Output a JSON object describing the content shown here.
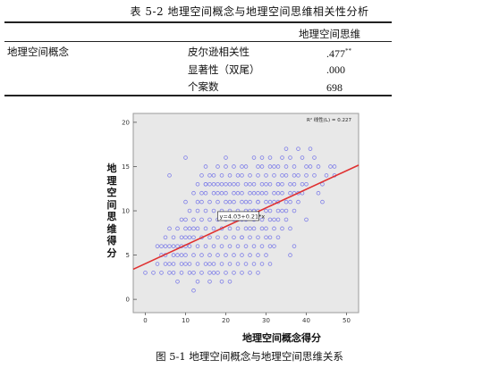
{
  "table": {
    "caption": "表 5-2  地理空间概念与地理空间思维相关性分析",
    "column_header": "地理空间思维",
    "row_header": "地理空间概念",
    "rows": [
      {
        "stat": "皮尔逊相关性",
        "value": ".477",
        "sig_mark": "**"
      },
      {
        "stat": "显著性（双尾）",
        "value": ".000",
        "sig_mark": ""
      },
      {
        "stat": "个案数",
        "value": "698",
        "sig_mark": ""
      }
    ]
  },
  "figure": {
    "caption": "图 5-1  地理空间概念与地理空间思维关系",
    "r2_label": "R² 线性(L) = 0.227",
    "equation_label": "y=4.03+0.21*x"
  },
  "chart_data": {
    "type": "scatter",
    "xlabel": "地理空间概念得分",
    "ylabel": "地理空间思维得分",
    "xlim": [
      -3,
      53
    ],
    "ylim": [
      -1.5,
      21
    ],
    "xticks": [
      0,
      10,
      20,
      30,
      40,
      50
    ],
    "yticks": [
      0,
      5,
      10,
      15,
      20
    ],
    "grid": false,
    "colors": {
      "points": "#8080e8",
      "fit_line": "#e03030",
      "background": "#e8e8e8"
    },
    "fit_line": {
      "intercept": 4.03,
      "slope": 0.21,
      "r2": 0.227
    },
    "points_x": [
      0,
      2,
      3,
      3,
      4,
      4,
      4,
      5,
      5,
      5,
      5,
      6,
      6,
      6,
      6,
      7,
      7,
      7,
      7,
      7,
      8,
      8,
      8,
      8,
      9,
      9,
      9,
      9,
      9,
      9,
      10,
      10,
      10,
      10,
      10,
      10,
      10,
      11,
      11,
      11,
      11,
      11,
      11,
      12,
      12,
      12,
      12,
      12,
      12,
      13,
      13,
      13,
      13,
      13,
      13,
      13,
      14,
      14,
      14,
      14,
      14,
      14,
      14,
      15,
      15,
      15,
      15,
      15,
      15,
      15,
      16,
      16,
      16,
      16,
      16,
      16,
      16,
      16,
      17,
      17,
      17,
      17,
      17,
      17,
      17,
      17,
      18,
      18,
      18,
      18,
      18,
      18,
      18,
      18,
      19,
      19,
      19,
      19,
      19,
      19,
      19,
      19,
      20,
      20,
      20,
      20,
      20,
      20,
      20,
      20,
      21,
      21,
      21,
      21,
      21,
      21,
      21,
      21,
      22,
      22,
      22,
      22,
      22,
      22,
      22,
      22,
      23,
      23,
      23,
      23,
      23,
      23,
      23,
      23,
      24,
      24,
      24,
      24,
      24,
      24,
      24,
      24,
      25,
      25,
      25,
      25,
      25,
      25,
      25,
      25,
      26,
      26,
      26,
      26,
      26,
      26,
      26,
      26,
      27,
      27,
      27,
      27,
      27,
      27,
      27,
      27,
      28,
      28,
      28,
      28,
      28,
      28,
      28,
      28,
      29,
      29,
      29,
      29,
      29,
      29,
      29,
      29,
      30,
      30,
      30,
      30,
      30,
      30,
      30,
      30,
      31,
      31,
      31,
      31,
      31,
      31,
      31,
      31,
      32,
      32,
      32,
      32,
      32,
      32,
      32,
      33,
      33,
      33,
      33,
      33,
      33,
      33,
      34,
      34,
      34,
      34,
      34,
      34,
      35,
      35,
      35,
      35,
      35,
      35,
      36,
      36,
      36,
      36,
      36,
      37,
      37,
      37,
      37,
      37,
      38,
      38,
      38,
      38,
      39,
      39,
      39,
      40,
      40,
      40,
      41,
      41,
      42,
      42,
      43,
      43,
      44,
      45,
      46,
      47,
      47,
      10,
      15,
      28,
      31,
      36,
      40,
      12,
      16,
      24,
      27,
      33,
      37,
      44,
      6,
      20,
      26
    ],
    "points_y": [
      3,
      3,
      4,
      6,
      5,
      6,
      3,
      4,
      6,
      7,
      5,
      4,
      6,
      8,
      3,
      5,
      7,
      4,
      6,
      3,
      5,
      8,
      6,
      2,
      4,
      7,
      9,
      6,
      5,
      3,
      9,
      11,
      7,
      5,
      4,
      8,
      6,
      10,
      6,
      8,
      4,
      7,
      3,
      12,
      9,
      7,
      5,
      3,
      8,
      13,
      10,
      8,
      6,
      4,
      11,
      2,
      14,
      11,
      9,
      7,
      5,
      12,
      3,
      15,
      12,
      10,
      8,
      6,
      13,
      4,
      11,
      13,
      9,
      7,
      5,
      14,
      3,
      2,
      12,
      10,
      8,
      14,
      6,
      4,
      13,
      3,
      15,
      11,
      9,
      7,
      13,
      5,
      3,
      12,
      14,
      10,
      8,
      6,
      12,
      4,
      13,
      2,
      11,
      13,
      9,
      7,
      15,
      5,
      3,
      12,
      14,
      10,
      8,
      6,
      11,
      4,
      13,
      2,
      12,
      15,
      9,
      7,
      5,
      13,
      3,
      11,
      14,
      10,
      8,
      6,
      12,
      4,
      13,
      9,
      15,
      11,
      7,
      5,
      9,
      3,
      12,
      14,
      10,
      8,
      13,
      6,
      4,
      11,
      15,
      9,
      12,
      7,
      5,
      10,
      3,
      13,
      14,
      11,
      8,
      12,
      6,
      10,
      4,
      16,
      9,
      13,
      7,
      15,
      11,
      5,
      12,
      3,
      14,
      10,
      8,
      12,
      6,
      13,
      4,
      16,
      9,
      15,
      11,
      7,
      10,
      5,
      13,
      14,
      8,
      12,
      6,
      9,
      11,
      4,
      16,
      10,
      13,
      7,
      15,
      11,
      9,
      12,
      14,
      8,
      6,
      10,
      13,
      15,
      9,
      7,
      11,
      12,
      14,
      10,
      8,
      16,
      13,
      12,
      9,
      11,
      14,
      15,
      17,
      10,
      12,
      13,
      8,
      16,
      11,
      14,
      12,
      13,
      10,
      15,
      12,
      17,
      11,
      14,
      13,
      12,
      16,
      15,
      14,
      13,
      15,
      17,
      14,
      16,
      15,
      12,
      13,
      14,
      15,
      14,
      15,
      16,
      13,
      11,
      15,
      5,
      9,
      1,
      4,
      7,
      10,
      13,
      6,
      11,
      14,
      16,
      8,
      10,
      17
    ],
    "x_tick_labels": [
      "0",
      "10",
      "20",
      "30",
      "40",
      "50"
    ],
    "y_tick_labels": [
      "0",
      "5",
      "10",
      "15",
      "20"
    ]
  }
}
